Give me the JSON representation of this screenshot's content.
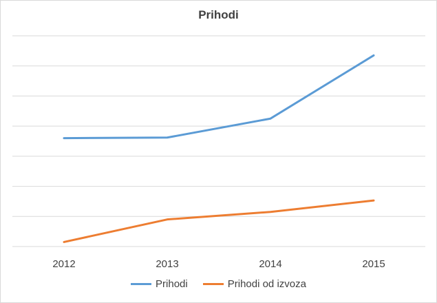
{
  "chart_data": {
    "type": "line",
    "title": "Prihodi",
    "x": [
      "2012",
      "2013",
      "2014",
      "2015"
    ],
    "ylim": [
      0,
      70
    ],
    "grid": true,
    "legend_position": "bottom",
    "series": [
      {
        "name": "Prihodi",
        "values": [
          36,
          36.2,
          42.5,
          63.5
        ],
        "color": "#5b9bd5"
      },
      {
        "name": "Prihodi od izvoza",
        "values": [
          1.5,
          9,
          11.5,
          15.3
        ],
        "color": "#ed7d31"
      }
    ]
  }
}
